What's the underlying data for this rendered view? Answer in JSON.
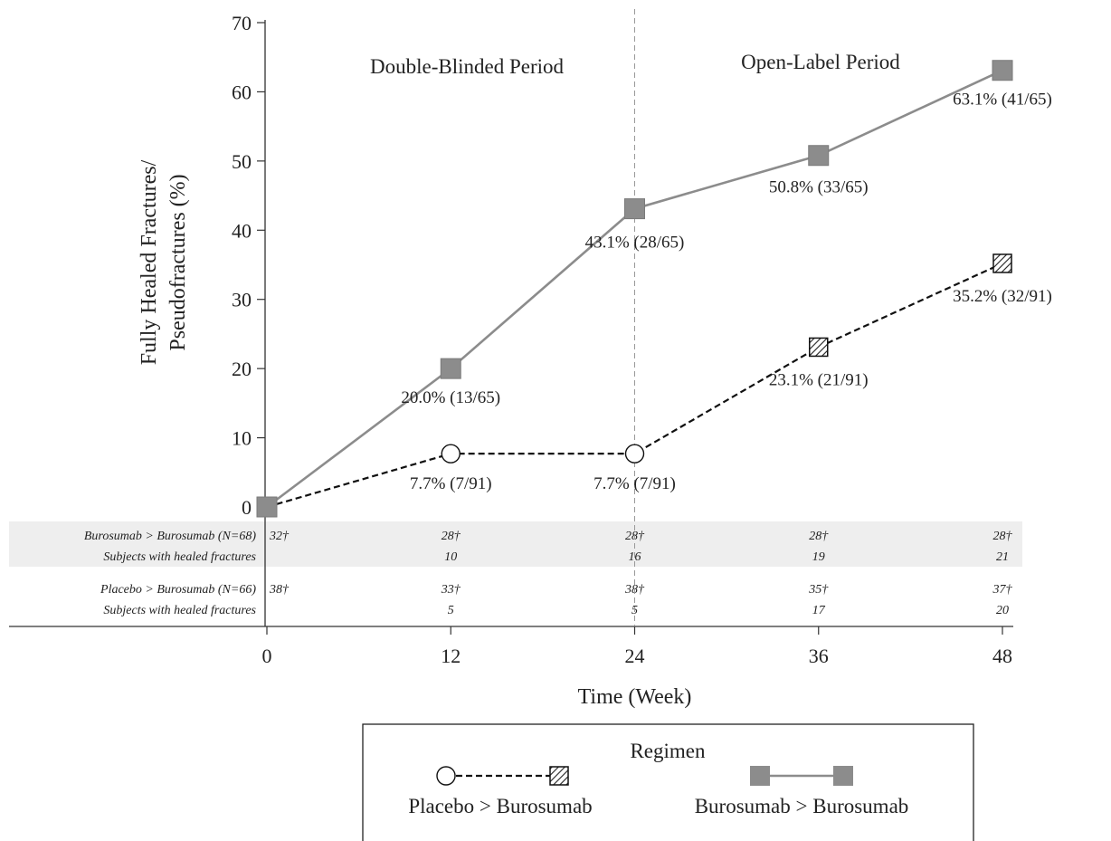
{
  "chart_data": {
    "type": "line",
    "x": [
      0,
      12,
      24,
      36,
      48
    ],
    "xlabel": "Time (Week)",
    "ylabel_lines": [
      "Fully Healed Fractures/",
      "Pseudofractures (%)"
    ],
    "xlim": [
      0,
      48
    ],
    "ylim": [
      0,
      70
    ],
    "yticks": [
      "0",
      "10",
      "20",
      "30",
      "40",
      "50",
      "60",
      "70"
    ],
    "xticks": [
      "0",
      "12",
      "24",
      "36",
      "48"
    ],
    "period_divider_x": 24,
    "periods": [
      "Double-Blinded Period",
      "Open-Label Period"
    ],
    "series": [
      {
        "name": "Burosumab > Burosumab",
        "style": "solid",
        "color": "#8c8c8c",
        "marker": "filled-square",
        "values": [
          0,
          20.0,
          43.1,
          50.8,
          63.1
        ],
        "labels": [
          "",
          "20.0% (13/65)",
          "43.1% (28/65)",
          "50.8% (33/65)",
          "63.1% (41/65)"
        ]
      },
      {
        "name": "Placebo > Burosumab",
        "style": "dashed",
        "color": "#111111",
        "markers": [
          "filled-square",
          "open-circle",
          "open-circle",
          "hatched-square",
          "hatched-square"
        ],
        "values": [
          0,
          7.7,
          7.7,
          23.1,
          35.2
        ],
        "labels": [
          "",
          "7.7% (7/91)",
          "7.7% (7/91)",
          "23.1% (21/91)",
          "35.2% (32/91)"
        ]
      }
    ],
    "table": [
      {
        "label": "Burosumab > Burosumab (N=68)",
        "values": [
          "32†",
          "28†",
          "28†",
          "28†",
          "28†"
        ],
        "shaded": true
      },
      {
        "label": "Subjects with healed fractures",
        "values": [
          "",
          "10",
          "16",
          "19",
          "21"
        ],
        "shaded": true
      },
      {
        "label": "Placebo > Burosumab (N=66)",
        "values": [
          "38†",
          "33†",
          "38†",
          "35†",
          "37†"
        ],
        "shaded": false
      },
      {
        "label": "Subjects with healed fractures",
        "values": [
          "",
          "5",
          "5",
          "17",
          "20"
        ],
        "shaded": false
      }
    ],
    "legend": {
      "title": "Regimen",
      "items": [
        "Placebo > Burosumab",
        "Burosumab > Burosumab"
      ]
    }
  }
}
